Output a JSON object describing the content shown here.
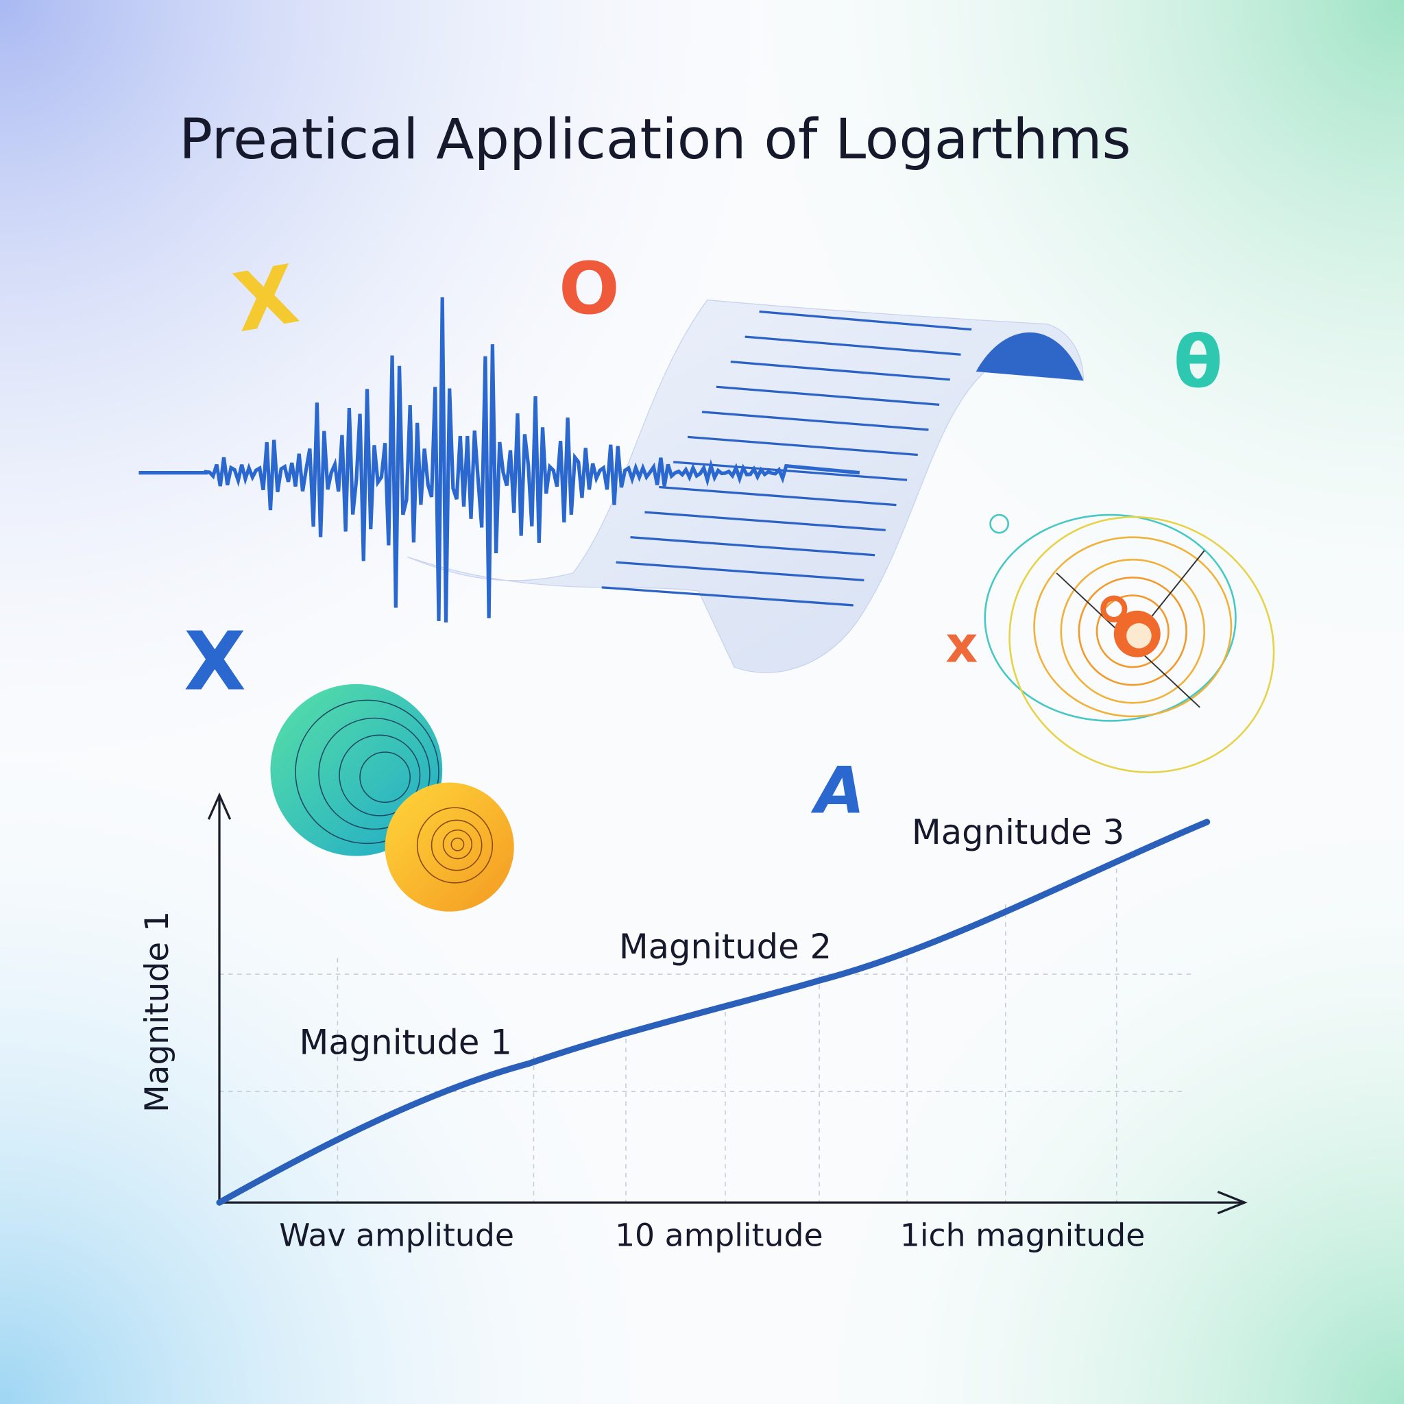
{
  "title": "Preatical Application of Logarthms",
  "symbols": [
    "X",
    "O",
    "θ",
    "X",
    "x",
    "A"
  ],
  "chart": {
    "y_label": "Magnitude 1",
    "annotations": [
      "Magnitude 1",
      "Magnitude 2",
      "Magnitude 3"
    ],
    "x_labels": [
      "Wav amplitude",
      "10 amplitude",
      "1ich magnitude"
    ]
  }
}
